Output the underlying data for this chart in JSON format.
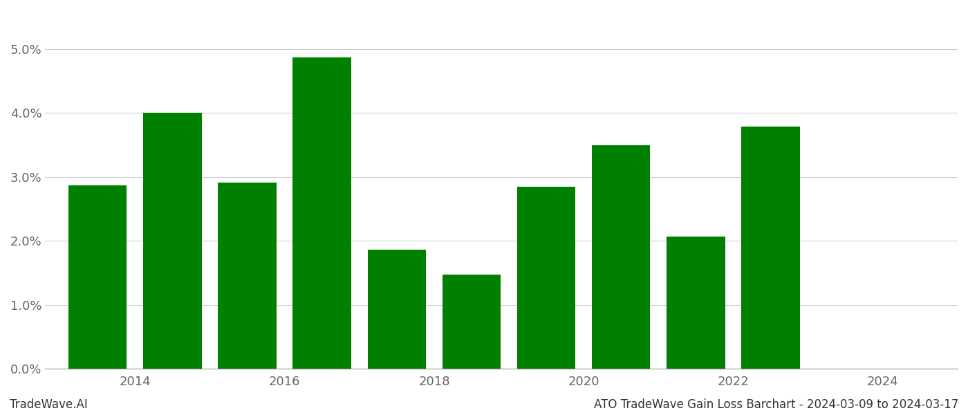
{
  "bar_positions": [
    2013.5,
    2014.5,
    2015.5,
    2016.5,
    2017.5,
    2018.5,
    2019.5,
    2020.5,
    2021.5,
    2022.5
  ],
  "values": [
    0.0287,
    0.04,
    0.0291,
    0.0487,
    0.0186,
    0.0147,
    0.0284,
    0.0349,
    0.0207,
    0.0378
  ],
  "bar_color": "#008000",
  "background_color": "#ffffff",
  "grid_color": "#cccccc",
  "title": "ATO TradeWave Gain Loss Barchart - 2024-03-09 to 2024-03-17",
  "watermark": "TradeWave.AI",
  "ylim": [
    0,
    0.056
  ],
  "yticks": [
    0.0,
    0.01,
    0.02,
    0.03,
    0.04,
    0.05
  ],
  "xtick_positions": [
    2014,
    2016,
    2018,
    2020,
    2022,
    2024
  ],
  "xlim": [
    2012.8,
    2025.0
  ],
  "xlabel_fontsize": 13,
  "ylabel_fontsize": 13,
  "title_fontsize": 12,
  "watermark_fontsize": 12,
  "bar_width": 0.78
}
